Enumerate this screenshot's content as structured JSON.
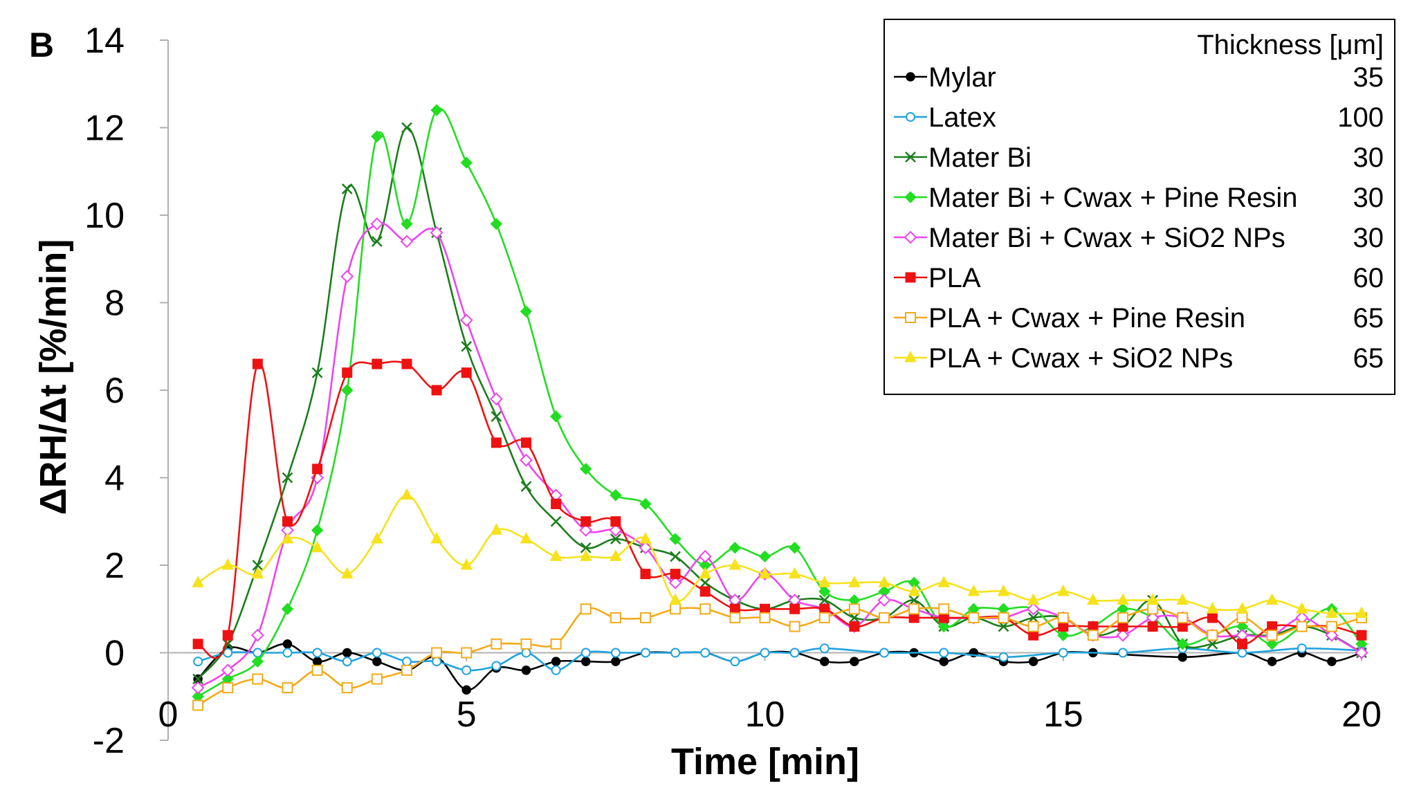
{
  "chart_data": {
    "type": "line",
    "panel_label": "B",
    "title": "",
    "xlabel": "Time [min]",
    "ylabel": "ΔRH/Δt [%/min]",
    "xlim": [
      0,
      20
    ],
    "ylim": [
      -2,
      14
    ],
    "x_ticks": [
      0,
      5,
      10,
      15,
      20
    ],
    "y_ticks": [
      -2,
      0,
      2,
      4,
      6,
      8,
      10,
      12,
      14
    ],
    "x_tick_labels": [
      "0",
      "5",
      "10",
      "15",
      "20"
    ],
    "y_tick_labels": [
      "-2",
      "0",
      "2",
      "4",
      "6",
      "8",
      "10",
      "12",
      "14"
    ],
    "grid": false,
    "legend": {
      "position": "top-right",
      "header": "Thickness [μm]",
      "entries": [
        {
          "name": "Mylar",
          "thickness": "35"
        },
        {
          "name": "Latex",
          "thickness": "100"
        },
        {
          "name": "Mater Bi",
          "thickness": "30"
        },
        {
          "name": "Mater Bi + Cwax + Pine Resin",
          "thickness": "30"
        },
        {
          "name": "Mater Bi + Cwax + SiO2 NPs",
          "thickness": "30"
        },
        {
          "name": "PLA",
          "thickness": "60"
        },
        {
          "name": "PLA + Cwax + Pine Resin",
          "thickness": "65"
        },
        {
          "name": "PLA + Cwax + SiO2 NPs",
          "thickness": "65"
        }
      ]
    },
    "series": [
      {
        "name": "Mylar",
        "color": "#000000",
        "marker": "circle-filled",
        "x": [
          0.5,
          1,
          1.5,
          2,
          2.5,
          3,
          3.5,
          4,
          4.5,
          5,
          5.5,
          6,
          6.5,
          7,
          7.5,
          8,
          8.5,
          9,
          9.5,
          10,
          10.5,
          11,
          11.5,
          12,
          12.5,
          13,
          13.5,
          14,
          14.5,
          15,
          15.5,
          17,
          18,
          18.5,
          19,
          19.5,
          20
        ],
        "values": [
          -0.6,
          0.1,
          0,
          0.2,
          -0.2,
          0,
          -0.2,
          -0.4,
          -0.1,
          -0.85,
          -0.35,
          -0.4,
          -0.2,
          -0.2,
          -0.2,
          0,
          0,
          0,
          -0.2,
          0,
          0,
          -0.2,
          -0.2,
          0,
          0,
          -0.2,
          0,
          -0.2,
          -0.2,
          0,
          0,
          -0.1,
          0,
          -0.2,
          0,
          -0.2,
          0
        ]
      },
      {
        "name": "Latex",
        "color": "#1fa3dd",
        "marker": "circle-open",
        "x": [
          0.5,
          1,
          1.5,
          2,
          2.5,
          3,
          3.5,
          4,
          4.5,
          5,
          5.5,
          6,
          6.5,
          7,
          7.5,
          8,
          8.5,
          9,
          9.5,
          10,
          10.5,
          11,
          12,
          13,
          14,
          15,
          16,
          17,
          18,
          19,
          20
        ],
        "values": [
          -0.2,
          0,
          0,
          0,
          0,
          -0.2,
          0,
          -0.2,
          -0.2,
          -0.4,
          -0.3,
          0,
          -0.4,
          0,
          0,
          0,
          0,
          0,
          -0.2,
          0,
          0,
          0.1,
          0,
          0,
          -0.1,
          0,
          0,
          0.1,
          0,
          0.1,
          0.05
        ]
      },
      {
        "name": "Mater Bi",
        "color": "#1b7d1b",
        "marker": "x",
        "x": [
          0.5,
          1,
          1.5,
          2,
          2.5,
          3,
          3.5,
          4,
          4.5,
          5,
          5.5,
          6,
          6.5,
          7,
          7.5,
          8,
          8.5,
          9,
          9.5,
          10,
          10.5,
          11,
          11.5,
          12,
          12.5,
          13,
          13.5,
          14,
          14.5,
          15,
          15.5,
          16,
          16.5,
          17,
          17.5,
          18,
          18.5,
          19,
          19.5,
          20
        ],
        "values": [
          -0.6,
          0.2,
          2,
          4,
          6.4,
          10.6,
          9.4,
          12,
          9.6,
          7,
          5.4,
          3.8,
          3,
          2.4,
          2.6,
          2.4,
          2.2,
          1.6,
          1.2,
          1,
          1.2,
          1.2,
          0.8,
          0.8,
          1.2,
          0.6,
          0.8,
          0.6,
          0.8,
          0.8,
          0.4,
          0.6,
          1.2,
          0.2,
          0.2,
          0.4,
          0.4,
          0.6,
          0.4,
          0
        ]
      },
      {
        "name": "Mater Bi + Cwax + Pine Resin",
        "color": "#22dd22",
        "marker": "diamond-filled",
        "x": [
          0.5,
          1,
          1.5,
          2,
          2.5,
          3,
          3.5,
          4,
          4.5,
          5,
          5.5,
          6,
          6.5,
          7,
          7.5,
          8,
          8.5,
          9,
          9.5,
          10,
          10.5,
          11,
          11.5,
          12,
          12.5,
          13,
          13.5,
          14,
          14.5,
          15,
          15.5,
          16,
          16.5,
          17,
          17.5,
          18,
          18.5,
          19,
          19.5,
          20
        ],
        "values": [
          -1,
          -0.6,
          -0.2,
          1,
          2.8,
          6,
          11.8,
          9.8,
          12.4,
          11.2,
          9.8,
          7.8,
          5.4,
          4.2,
          3.6,
          3.4,
          2.6,
          2,
          2.4,
          2.2,
          2.4,
          1.4,
          1.2,
          1.4,
          1.6,
          0.6,
          1,
          1,
          1,
          0.4,
          0.6,
          1,
          0.8,
          0.2,
          0.4,
          0.6,
          0.2,
          0.6,
          1,
          0.2
        ]
      },
      {
        "name": "Mater Bi + Cwax + SiO2 NPs",
        "color": "#ee44ee",
        "marker": "diamond-open",
        "x": [
          0.5,
          1,
          1.5,
          2,
          2.5,
          3,
          3.5,
          4,
          4.5,
          5,
          5.5,
          6,
          6.5,
          7,
          7.5,
          8,
          8.5,
          9,
          9.5,
          10,
          10.5,
          11,
          11.5,
          12,
          12.5,
          13,
          13.5,
          14,
          14.5,
          15,
          15.5,
          16,
          16.5,
          17,
          17.5,
          18,
          18.5,
          19,
          19.5,
          20
        ],
        "values": [
          -0.8,
          -0.4,
          0.4,
          2.8,
          4,
          8.6,
          9.8,
          9.4,
          9.6,
          7.6,
          5.8,
          4.4,
          3.6,
          2.8,
          2.8,
          2.4,
          1.6,
          2.2,
          1.2,
          1.8,
          1.2,
          1,
          0.6,
          1.2,
          1,
          0.8,
          0.8,
          0.8,
          1,
          0.8,
          0.4,
          0.4,
          0.8,
          0.8,
          0.4,
          0.4,
          0.4,
          0.8,
          0.4,
          0
        ]
      },
      {
        "name": "PLA",
        "color": "#ee1111",
        "marker": "square-filled",
        "x": [
          0.5,
          1,
          1.5,
          2,
          2.5,
          3,
          3.5,
          4,
          4.5,
          5,
          5.5,
          6,
          6.5,
          7,
          7.5,
          8,
          8.5,
          9,
          9.5,
          10,
          10.5,
          11,
          11.5,
          12,
          12.5,
          13,
          13.5,
          14,
          14.5,
          15,
          15.5,
          16,
          16.5,
          17,
          17.5,
          18,
          18.5,
          19,
          19.5,
          20
        ],
        "values": [
          0.2,
          0.4,
          6.6,
          3,
          4.2,
          6.4,
          6.6,
          6.6,
          6,
          6.4,
          4.8,
          4.8,
          3.4,
          3,
          3,
          1.8,
          1.8,
          1.4,
          1,
          1,
          1,
          1,
          0.6,
          0.8,
          0.8,
          0.8,
          0.8,
          0.8,
          0.4,
          0.6,
          0.6,
          0.6,
          0.6,
          0.6,
          0.8,
          0.2,
          0.6,
          0.6,
          0.6,
          0.4
        ]
      },
      {
        "name": "PLA + Cwax + Pine Resin",
        "color": "#f2aa1a",
        "marker": "square-open",
        "x": [
          0.5,
          1,
          1.5,
          2,
          2.5,
          3,
          3.5,
          4,
          4.5,
          5,
          5.5,
          6,
          6.5,
          7,
          7.5,
          8,
          8.5,
          9,
          9.5,
          10,
          10.5,
          11,
          11.5,
          12,
          12.5,
          13,
          13.5,
          14,
          14.5,
          15,
          15.5,
          16,
          16.5,
          17,
          17.5,
          18,
          18.5,
          19,
          19.5,
          20
        ],
        "values": [
          -1.2,
          -0.8,
          -0.6,
          -0.8,
          -0.4,
          -0.8,
          -0.6,
          -0.4,
          0,
          0,
          0.2,
          0.2,
          0.2,
          1,
          0.8,
          0.8,
          1,
          1,
          0.8,
          0.8,
          0.6,
          0.8,
          1,
          0.8,
          1,
          1,
          0.8,
          0.8,
          0.6,
          0.8,
          0.4,
          0.8,
          1,
          0.8,
          0.4,
          0.8,
          0.4,
          0.6,
          0.6,
          0.8
        ]
      },
      {
        "name": "PLA + Cwax + SiO2 NPs",
        "color": "#f6e21c",
        "marker": "triangle-filled",
        "x": [
          0.5,
          1,
          1.5,
          2,
          2.5,
          3,
          3.5,
          4,
          4.5,
          5,
          5.5,
          6,
          6.5,
          7,
          7.5,
          8,
          8.5,
          9,
          9.5,
          10,
          10.5,
          11,
          11.5,
          12,
          12.5,
          13,
          13.5,
          14,
          14.5,
          15,
          15.5,
          16,
          16.5,
          17,
          17.5,
          18,
          18.5,
          19,
          19.5,
          20
        ],
        "values": [
          1.6,
          2,
          1.8,
          2.6,
          2.4,
          1.8,
          2.6,
          3.6,
          2.6,
          2,
          2.8,
          2.6,
          2.2,
          2.2,
          2.2,
          2.6,
          1.2,
          1.8,
          2,
          1.8,
          1.8,
          1.6,
          1.6,
          1.6,
          1.4,
          1.6,
          1.4,
          1.4,
          1.2,
          1.4,
          1.2,
          1.2,
          1.2,
          1.2,
          1,
          1,
          1.2,
          1,
          0.9,
          0.9
        ]
      }
    ]
  }
}
